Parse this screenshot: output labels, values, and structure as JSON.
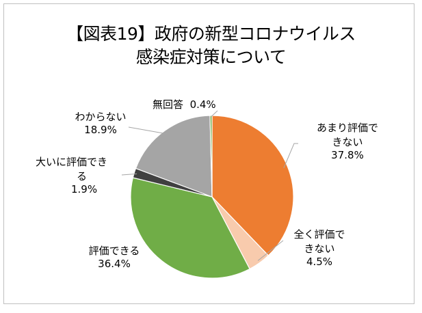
{
  "chart_data": {
    "type": "pie",
    "title_lines": [
      "【図表19】政府の新型コロナウイルス",
      "感染症対策について"
    ],
    "slices": [
      {
        "label": "あまり評価できない",
        "label_lines": [
          "あまり評価で",
          "きない"
        ],
        "value": 37.8,
        "value_text": "37.8%",
        "color": "#ed7d31"
      },
      {
        "label": "全く評価できない",
        "label_lines": [
          "全く評価で",
          "きない"
        ],
        "value": 4.5,
        "value_text": "4.5%",
        "color": "#f8cbad"
      },
      {
        "label": "評価できる",
        "label_lines": [
          "評価できる"
        ],
        "value": 36.4,
        "value_text": "36.4%",
        "color": "#70ad47"
      },
      {
        "label": "大いに評価できる",
        "label_lines": [
          "大いに評価でき",
          "る"
        ],
        "value": 1.9,
        "value_text": "1.9%",
        "color": "#404040"
      },
      {
        "label": "わからない",
        "label_lines": [
          "わからない"
        ],
        "value": 18.9,
        "value_text": "18.9%",
        "color": "#a5a5a5"
      },
      {
        "label": "無回答",
        "label_lines": [
          "無回答"
        ],
        "value": 0.4,
        "value_text": "0.4%",
        "color": "#70ad47"
      }
    ],
    "start": "12 o'clock",
    "direction": "clockwise",
    "legend": "none"
  }
}
